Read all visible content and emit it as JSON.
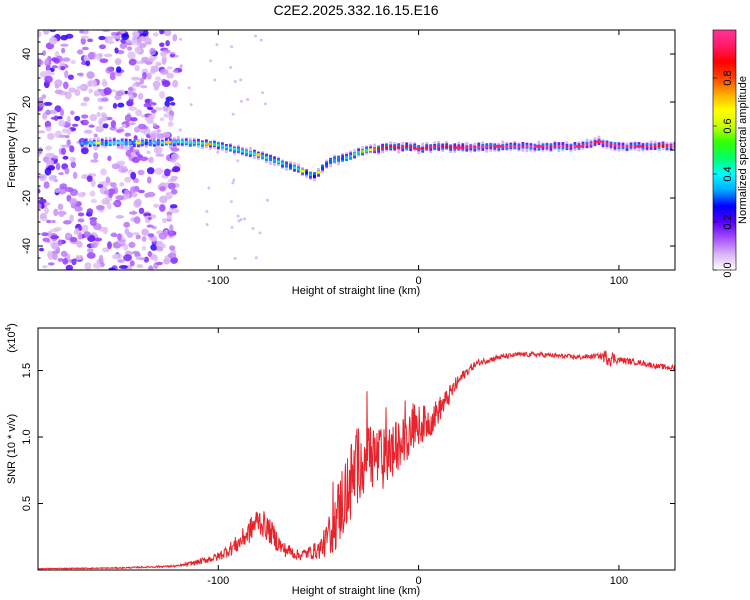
{
  "title": "C2E2.2025.332.16.15.E16",
  "chart_data": [
    {
      "type": "heatmap",
      "xlabel": "Height of straight line (km)",
      "ylabel": "Frequency (Hz)",
      "xlim": [
        -190,
        128
      ],
      "ylim": [
        -50,
        50
      ],
      "x_ticks": [
        -100,
        0,
        100
      ],
      "y_ticks": [
        -40,
        -20,
        0,
        20,
        40
      ],
      "colorbar": {
        "label": "Normalized spectral amplitude",
        "range": [
          0.0,
          1.0
        ],
        "ticks": [
          0.0,
          0.2,
          0.4,
          0.6,
          0.8
        ],
        "tick_labels": [
          "0.0",
          "0.2",
          "0.4",
          "0.6",
          "0.8"
        ],
        "colors": [
          "#ffffff",
          "#d9b3f5",
          "#a64dff",
          "#5500ff",
          "#0000ff",
          "#00aaff",
          "#00ffff",
          "#00ff66",
          "#33ff00",
          "#ccff00",
          "#ffff00",
          "#ffaa00",
          "#ff4400",
          "#ff0000",
          "#ff1a66",
          "#ff3399"
        ]
      },
      "ridge": {
        "height_km": [
          -168,
          -150,
          -130,
          -120,
          -110,
          -100,
          -90,
          -80,
          -70,
          -60,
          -52,
          -45,
          -40,
          -35,
          -30,
          -25,
          -20,
          -15,
          -10,
          -5,
          0,
          10,
          20,
          40,
          60,
          80,
          90,
          100,
          110,
          128
        ],
        "frequency_hz": [
          3,
          3,
          3,
          3.5,
          3,
          2,
          0,
          -2,
          -5,
          -8,
          -11,
          -5,
          -4,
          -3,
          -1,
          0,
          0.5,
          1.5,
          1,
          1.5,
          0.5,
          1.5,
          1,
          1.5,
          1.5,
          1.5,
          3.5,
          1.5,
          1.5,
          2
        ],
        "amplitude": [
          0.35,
          0.35,
          0.35,
          0.45,
          0.4,
          0.45,
          0.4,
          0.4,
          0.35,
          0.35,
          0.3,
          0.3,
          0.3,
          0.35,
          0.45,
          0.6,
          0.85,
          0.9,
          0.9,
          0.9,
          0.85,
          0.9,
          0.95,
          0.95,
          0.95,
          0.95,
          0.95,
          0.95,
          0.9,
          0.9
        ]
      },
      "noise_region_km": [
        -190,
        -120
      ]
    },
    {
      "type": "line",
      "xlabel": "Height of straight line (km)",
      "ylabel": "SNR (10 * v/v)",
      "y_scale_note": "(x10",
      "y_scale_exp": "4",
      "xlim": [
        -190,
        128
      ],
      "ylim": [
        0,
        18200
      ],
      "x_ticks": [
        -100,
        0,
        100
      ],
      "y_ticks": [
        5000,
        10000,
        15000
      ],
      "y_tick_labels": [
        "0.5",
        "1.0",
        "1.5"
      ],
      "color": "#e8232b",
      "series": [
        {
          "name": "SNR",
          "x": [
            -190,
            -150,
            -120,
            -110,
            -100,
            -90,
            -85,
            -80,
            -76,
            -72,
            -68,
            -64,
            -60,
            -55,
            -50,
            -46,
            -42,
            -38,
            -34,
            -30,
            -26,
            -22,
            -18,
            -14,
            -10,
            -6,
            -2,
            2,
            6,
            10,
            14,
            18,
            22,
            26,
            30,
            40,
            50,
            60,
            70,
            80,
            90,
            95,
            100,
            110,
            120,
            128
          ],
          "y": [
            100,
            150,
            300,
            600,
            1000,
            2000,
            2800,
            3800,
            3200,
            2500,
            1600,
            1400,
            1100,
            1300,
            1500,
            2200,
            3500,
            5200,
            6500,
            8000,
            8800,
            8600,
            8200,
            8800,
            9200,
            10000,
            10800,
            11000,
            11200,
            12000,
            12800,
            13800,
            14600,
            15200,
            15600,
            16000,
            16200,
            16200,
            16100,
            16000,
            16100,
            16000,
            15800,
            15600,
            15300,
            15200
          ],
          "noise_amp": [
            30,
            40,
            80,
            200,
            350,
            700,
            900,
            1100,
            1000,
            900,
            600,
            500,
            400,
            500,
            700,
            1200,
            2200,
            3000,
            3200,
            3000,
            2800,
            2600,
            2400,
            2200,
            2000,
            1800,
            1600,
            1400,
            1200,
            1000,
            800,
            600,
            400,
            300,
            250,
            200,
            180,
            180,
            180,
            180,
            180,
            700,
            250,
            200,
            200,
            200
          ]
        }
      ]
    }
  ]
}
